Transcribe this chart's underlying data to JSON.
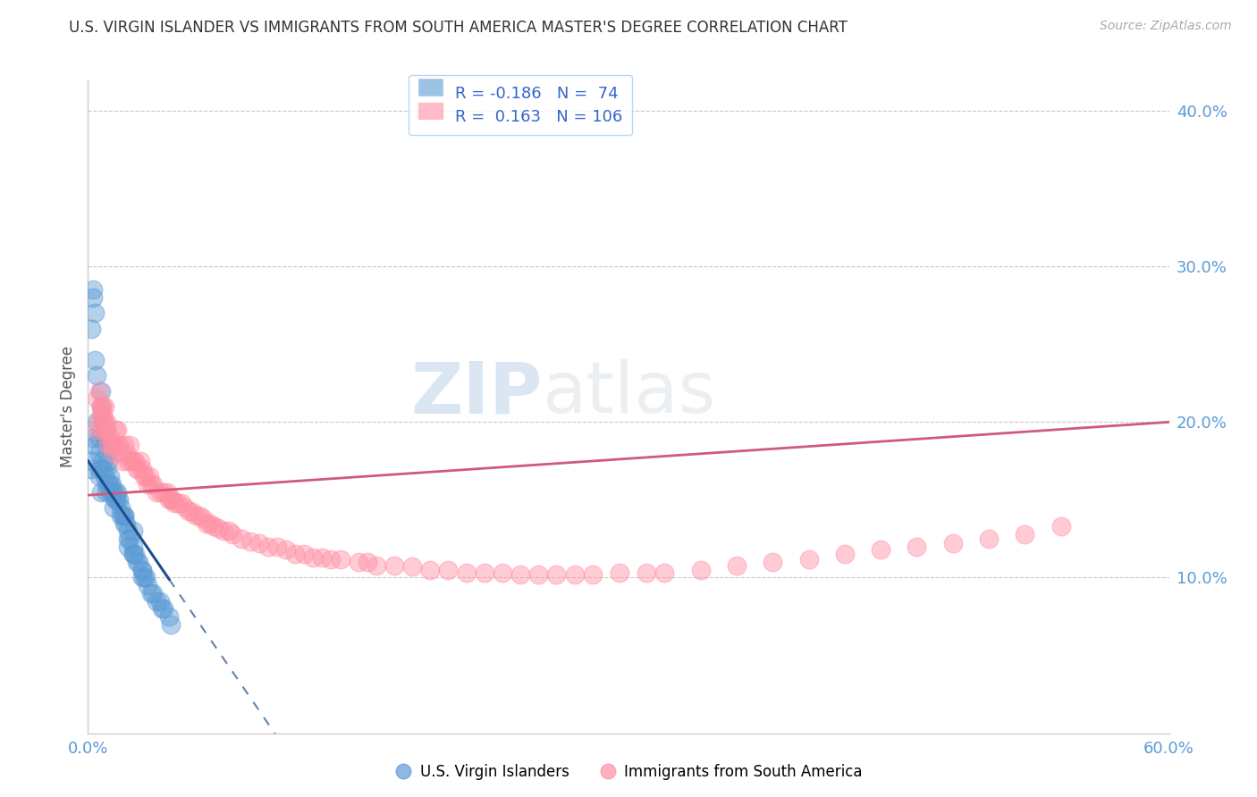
{
  "title": "U.S. VIRGIN ISLANDER VS IMMIGRANTS FROM SOUTH AMERICA MASTER'S DEGREE CORRELATION CHART",
  "source": "Source: ZipAtlas.com",
  "ylabel": "Master's Degree",
  "xlim": [
    0.0,
    0.6
  ],
  "ylim": [
    0.0,
    0.42
  ],
  "xticks": [
    0.0,
    0.6
  ],
  "yticks": [
    0.1,
    0.2,
    0.3,
    0.4
  ],
  "ytick_labels": [
    "10.0%",
    "20.0%",
    "30.0%",
    "40.0%"
  ],
  "xtick_labels": [
    "0.0%",
    "60.0%"
  ],
  "blue_R": -0.186,
  "blue_N": 74,
  "pink_R": 0.163,
  "pink_N": 106,
  "blue_color": "#5b9bd5",
  "pink_color": "#ff8fa3",
  "blue_line_color": "#1f4e8c",
  "pink_line_color": "#d05a78",
  "legend_blue_label": "U.S. Virgin Islanders",
  "legend_pink_label": "Immigrants from South America",
  "background_color": "#ffffff",
  "grid_color": "#c8c8c8",
  "watermark_zip": "ZIP",
  "watermark_atlas": "atlas",
  "blue_x": [
    0.002,
    0.003,
    0.004,
    0.005,
    0.005,
    0.006,
    0.007,
    0.007,
    0.008,
    0.009,
    0.01,
    0.01,
    0.011,
    0.011,
    0.012,
    0.012,
    0.013,
    0.013,
    0.014,
    0.015,
    0.015,
    0.016,
    0.016,
    0.017,
    0.018,
    0.019,
    0.02,
    0.02,
    0.021,
    0.022,
    0.022,
    0.023,
    0.025,
    0.025,
    0.026,
    0.027,
    0.028,
    0.03,
    0.03,
    0.031,
    0.032,
    0.033,
    0.035,
    0.036,
    0.038,
    0.04,
    0.041,
    0.042,
    0.045,
    0.046,
    0.006,
    0.006,
    0.007,
    0.008,
    0.009,
    0.01,
    0.012,
    0.014,
    0.003,
    0.004,
    0.018,
    0.022,
    0.025,
    0.03,
    0.025,
    0.02,
    0.015,
    0.01,
    0.008,
    0.006,
    0.004,
    0.003,
    0.002,
    0.002
  ],
  "blue_y": [
    0.26,
    0.28,
    0.24,
    0.2,
    0.23,
    0.19,
    0.22,
    0.21,
    0.2,
    0.19,
    0.18,
    0.17,
    0.16,
    0.175,
    0.165,
    0.16,
    0.16,
    0.155,
    0.155,
    0.155,
    0.15,
    0.155,
    0.15,
    0.15,
    0.14,
    0.14,
    0.14,
    0.135,
    0.135,
    0.13,
    0.125,
    0.125,
    0.12,
    0.115,
    0.115,
    0.11,
    0.11,
    0.1,
    0.105,
    0.1,
    0.1,
    0.095,
    0.09,
    0.09,
    0.085,
    0.085,
    0.08,
    0.08,
    0.075,
    0.07,
    0.165,
    0.17,
    0.155,
    0.175,
    0.165,
    0.16,
    0.155,
    0.145,
    0.285,
    0.27,
    0.145,
    0.12,
    0.115,
    0.105,
    0.13,
    0.14,
    0.15,
    0.155,
    0.17,
    0.18,
    0.185,
    0.19,
    0.175,
    0.17
  ],
  "pink_x": [
    0.005,
    0.006,
    0.007,
    0.008,
    0.008,
    0.009,
    0.01,
    0.01,
    0.011,
    0.012,
    0.013,
    0.014,
    0.014,
    0.015,
    0.016,
    0.016,
    0.017,
    0.018,
    0.019,
    0.02,
    0.021,
    0.022,
    0.023,
    0.024,
    0.025,
    0.026,
    0.027,
    0.028,
    0.029,
    0.03,
    0.031,
    0.032,
    0.033,
    0.034,
    0.035,
    0.036,
    0.038,
    0.04,
    0.042,
    0.044,
    0.045,
    0.046,
    0.047,
    0.048,
    0.05,
    0.052,
    0.054,
    0.056,
    0.058,
    0.06,
    0.062,
    0.064,
    0.066,
    0.068,
    0.07,
    0.072,
    0.075,
    0.078,
    0.08,
    0.085,
    0.09,
    0.095,
    0.1,
    0.105,
    0.11,
    0.115,
    0.12,
    0.125,
    0.13,
    0.135,
    0.14,
    0.15,
    0.155,
    0.16,
    0.17,
    0.18,
    0.19,
    0.2,
    0.21,
    0.22,
    0.23,
    0.24,
    0.25,
    0.26,
    0.27,
    0.28,
    0.295,
    0.31,
    0.32,
    0.34,
    0.36,
    0.38,
    0.4,
    0.42,
    0.44,
    0.46,
    0.48,
    0.5,
    0.52,
    0.54,
    0.005,
    0.006,
    0.007,
    0.008,
    0.009,
    0.01
  ],
  "pink_y": [
    0.195,
    0.2,
    0.205,
    0.195,
    0.21,
    0.2,
    0.195,
    0.2,
    0.185,
    0.19,
    0.185,
    0.185,
    0.18,
    0.195,
    0.185,
    0.195,
    0.185,
    0.18,
    0.175,
    0.185,
    0.18,
    0.175,
    0.185,
    0.175,
    0.175,
    0.175,
    0.17,
    0.17,
    0.175,
    0.17,
    0.165,
    0.165,
    0.16,
    0.165,
    0.16,
    0.16,
    0.155,
    0.155,
    0.155,
    0.155,
    0.15,
    0.15,
    0.15,
    0.148,
    0.148,
    0.148,
    0.145,
    0.143,
    0.142,
    0.14,
    0.14,
    0.138,
    0.135,
    0.135,
    0.133,
    0.132,
    0.13,
    0.13,
    0.128,
    0.125,
    0.123,
    0.122,
    0.12,
    0.12,
    0.118,
    0.115,
    0.115,
    0.113,
    0.113,
    0.112,
    0.112,
    0.11,
    0.11,
    0.108,
    0.108,
    0.107,
    0.105,
    0.105,
    0.103,
    0.103,
    0.103,
    0.102,
    0.102,
    0.102,
    0.102,
    0.102,
    0.103,
    0.103,
    0.103,
    0.105,
    0.108,
    0.11,
    0.112,
    0.115,
    0.118,
    0.12,
    0.122,
    0.125,
    0.128,
    0.133,
    0.215,
    0.22,
    0.21,
    0.205,
    0.21,
    0.195
  ]
}
